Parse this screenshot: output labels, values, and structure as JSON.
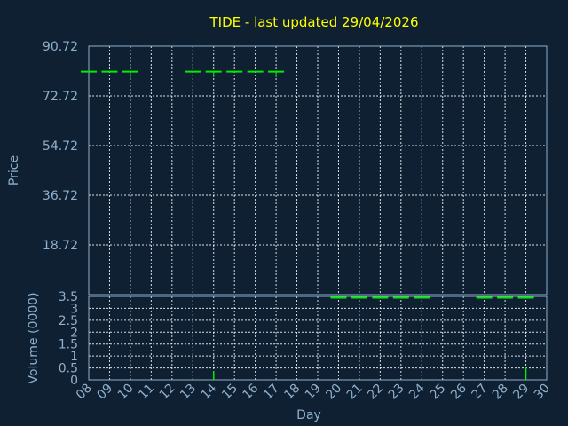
{
  "chart_data": {
    "type": "ohlc+volume",
    "title": "TIDE - last updated 29/04/2026",
    "xlabel": "Day",
    "colors": {
      "background": "#0f2033",
      "axes": "#8fb0cc",
      "title": "#ffff00",
      "grid": "#ffffff",
      "price": "#00ee00"
    },
    "x_ticks": [
      "08",
      "09",
      "10",
      "11",
      "12",
      "13",
      "14",
      "15",
      "16",
      "17",
      "18",
      "19",
      "20",
      "21",
      "22",
      "23",
      "24",
      "25",
      "26",
      "27",
      "28",
      "29",
      "30"
    ],
    "price": {
      "ylabel": "Price",
      "ylim": [
        0.72,
        90.72
      ],
      "y_ticks": [
        "90.72",
        "72.72",
        "54.72",
        "36.72",
        "18.72"
      ],
      "y_tick_values": [
        90.72,
        72.72,
        54.72,
        36.72,
        18.72
      ],
      "bars": [
        {
          "day": "08",
          "open": 81.5,
          "high": 81.5,
          "low": 81.5,
          "close": 81.5
        },
        {
          "day": "09",
          "open": 81.5,
          "high": 81.5,
          "low": 81.5,
          "close": 81.5
        },
        {
          "day": "10",
          "open": 81.5,
          "high": 81.5,
          "low": 78.9,
          "close": 81.5
        },
        {
          "day": "13",
          "open": 81.5,
          "high": 81.5,
          "low": 81.5,
          "close": 81.5
        },
        {
          "day": "14",
          "open": 81.5,
          "high": 81.5,
          "low": 79.6,
          "close": 81.5
        },
        {
          "day": "15",
          "open": 81.5,
          "high": 81.5,
          "low": 81.5,
          "close": 81.5
        },
        {
          "day": "16",
          "open": 81.5,
          "high": 81.5,
          "low": 81.5,
          "close": 81.5
        },
        {
          "day": "17",
          "open": 81.5,
          "high": 81.5,
          "low": 79.6,
          "close": 81.5
        }
      ]
    },
    "volume": {
      "ylabel": "Volume (0000)",
      "ylim": [
        0,
        3.5
      ],
      "y_ticks": [
        "3.5",
        "3",
        "2.5",
        "2",
        "1.5",
        "1",
        "0.5",
        "0"
      ],
      "y_tick_values": [
        3.5,
        3,
        2.5,
        2,
        1.5,
        1,
        0.5,
        0
      ],
      "bars": [
        {
          "day": "14",
          "value": 0.15
        },
        {
          "day": "29",
          "value": 0.3
        }
      ],
      "flat_marks": [
        {
          "day": "20",
          "value": 3.5
        },
        {
          "day": "21",
          "value": 3.5
        },
        {
          "day": "22",
          "value": 3.5
        },
        {
          "day": "23",
          "value": 3.5
        },
        {
          "day": "24",
          "value": 3.5
        },
        {
          "day": "27",
          "value": 3.5
        },
        {
          "day": "28",
          "value": 3.5
        },
        {
          "day": "29",
          "value": 3.5
        }
      ]
    }
  }
}
